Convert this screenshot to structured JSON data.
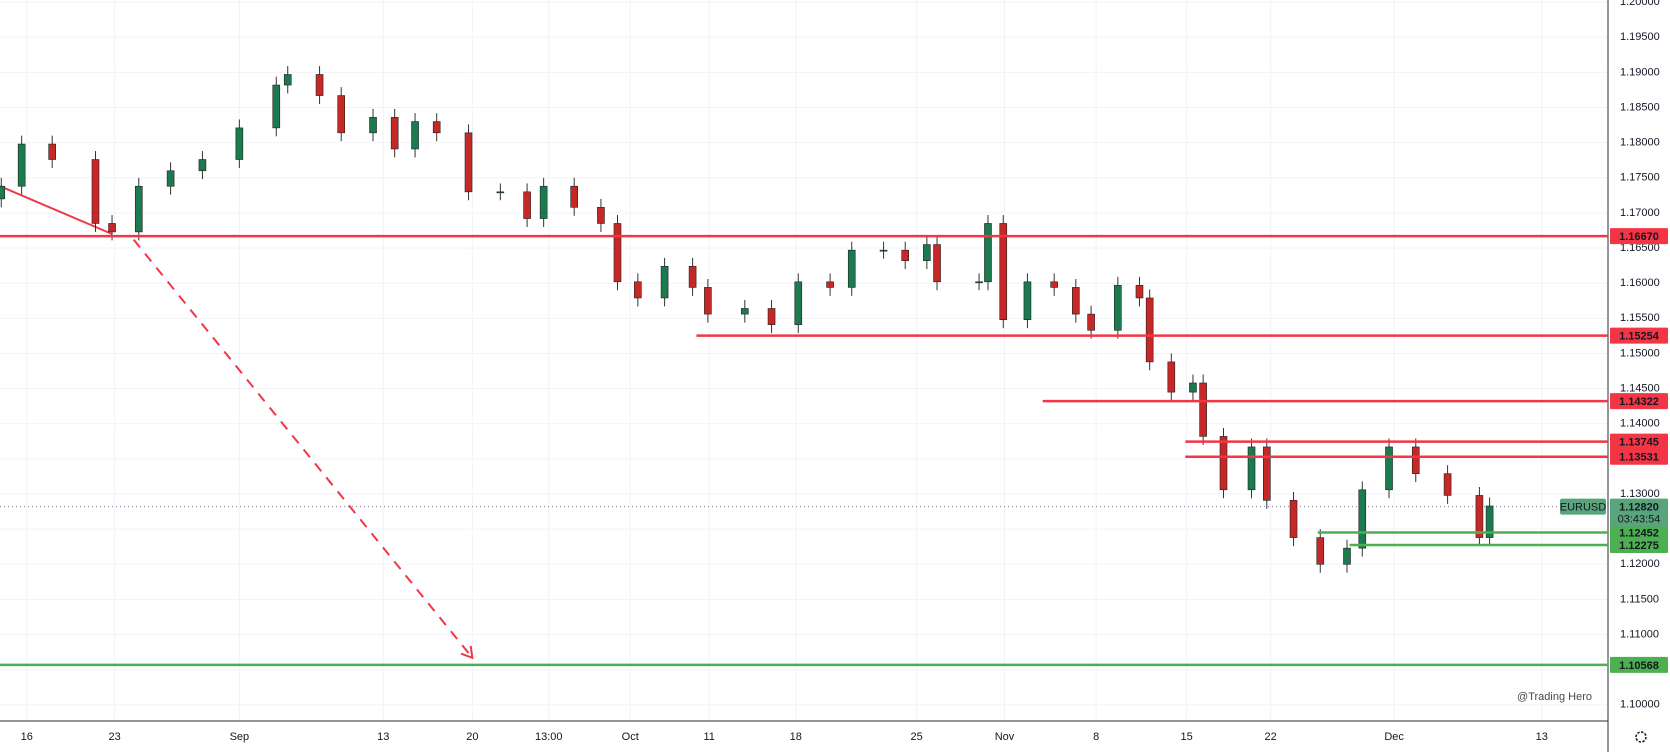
{
  "chart_data": {
    "type": "candlestick",
    "symbol": "EURUSD",
    "watermark": "@Trading Hero",
    "up_color": "#1b7a4e",
    "down_color": "#c62828",
    "xlim": [
      -2.1,
      124.2
    ],
    "ylim": [
      1.0977,
      1.2003
    ],
    "grid": true,
    "xticks": [
      {
        "value": 0,
        "label": "16"
      },
      {
        "value": 6.9,
        "label": "23"
      },
      {
        "value": 16.7,
        "label": "Sep"
      },
      {
        "value": 28.0,
        "label": "13"
      },
      {
        "value": 35.0,
        "label": "20"
      },
      {
        "value": 41.0,
        "label": "13:00"
      },
      {
        "value": 47.4,
        "label": "Oct"
      },
      {
        "value": 53.6,
        "label": "11"
      },
      {
        "value": 60.4,
        "label": "18"
      },
      {
        "value": 69.9,
        "label": "25"
      },
      {
        "value": 76.8,
        "label": "Nov"
      },
      {
        "value": 84.0,
        "label": "8"
      },
      {
        "value": 91.1,
        "label": "15"
      },
      {
        "value": 97.7,
        "label": "22"
      },
      {
        "value": 107.4,
        "label": "Dec"
      },
      {
        "value": 119.0,
        "label": "13"
      }
    ],
    "yticks": [
      {
        "value": 1.1,
        "label": "1.10000"
      },
      {
        "value": 1.105,
        "label": "1.10500"
      },
      {
        "value": 1.11,
        "label": "1.11000"
      },
      {
        "value": 1.115,
        "label": "1.11500"
      },
      {
        "value": 1.12,
        "label": "1.12000"
      },
      {
        "value": 1.125,
        "label": "1.12500"
      },
      {
        "value": 1.13,
        "label": "1.13000"
      },
      {
        "value": 1.135,
        "label": "1.13500"
      },
      {
        "value": 1.14,
        "label": "1.14000"
      },
      {
        "value": 1.145,
        "label": "1.14500"
      },
      {
        "value": 1.15,
        "label": "1.15000"
      },
      {
        "value": 1.155,
        "label": "1.15500"
      },
      {
        "value": 1.16,
        "label": "1.16000"
      },
      {
        "value": 1.165,
        "label": "1.16500"
      },
      {
        "value": 1.17,
        "label": "1.17000"
      },
      {
        "value": 1.175,
        "label": "1.17500"
      },
      {
        "value": 1.18,
        "label": "1.18000"
      },
      {
        "value": 1.185,
        "label": "1.18500"
      },
      {
        "value": 1.19,
        "label": "1.19000"
      },
      {
        "value": 1.195,
        "label": "1.19500"
      },
      {
        "value": 1.2,
        "label": "1.20000"
      }
    ],
    "x": [
      -2,
      -0.4,
      2,
      5.4,
      6.7,
      8.8,
      11.3,
      13.8,
      16.7,
      19.6,
      20.5,
      23,
      24.7,
      27.2,
      28.9,
      30.5,
      32.2,
      34.7,
      37.2,
      39.3,
      40.6,
      43,
      45.1,
      46.4,
      48,
      50.1,
      52.3,
      53.5,
      56.4,
      58.5,
      60.6,
      63.1,
      64.8,
      67.3,
      69,
      70.7,
      71.5,
      74.8,
      75.5,
      76.7,
      78.6,
      80.7,
      82.4,
      83.6,
      85.7,
      87.4,
      88.2,
      89.9,
      91.6,
      92.4,
      94,
      96.2,
      97.4,
      99.5,
      101.6,
      103.7,
      104.9,
      107,
      109.1,
      111.6,
      114.1,
      114.9
    ],
    "open": [
      1.172,
      1.1738,
      1.1798,
      1.1776,
      1.1685,
      1.1673,
      1.1738,
      1.176,
      1.1776,
      1.1821,
      1.1882,
      1.1897,
      1.1867,
      1.1814,
      1.1836,
      1.1791,
      1.183,
      1.1814,
      1.173,
      1.173,
      1.1692,
      1.1738,
      1.1708,
      1.1685,
      1.1602,
      1.1579,
      1.1624,
      1.1594,
      1.1556,
      1.1564,
      1.1541,
      1.1602,
      1.1594,
      1.1647,
      1.1647,
      1.1632,
      1.1655,
      1.1602,
      1.1602,
      1.1685,
      1.1548,
      1.1602,
      1.1594,
      1.1556,
      1.1533,
      1.1597,
      1.1579,
      1.1488,
      1.1445,
      1.1458,
      1.1382,
      1.1306,
      1.1367,
      1.1291,
      1.1238,
      1.12,
      1.1223,
      1.1306,
      1.1367,
      1.1329,
      1.1298,
      1.1238
    ],
    "high": [
      1.175,
      1.181,
      1.181,
      1.1788,
      1.1697,
      1.175,
      1.1772,
      1.1788,
      1.1833,
      1.1894,
      1.1909,
      1.1909,
      1.1879,
      1.1848,
      1.1848,
      1.1842,
      1.1842,
      1.1826,
      1.1742,
      1.1742,
      1.175,
      1.175,
      1.172,
      1.1697,
      1.1614,
      1.1636,
      1.1636,
      1.1606,
      1.1576,
      1.1576,
      1.1614,
      1.1614,
      1.1659,
      1.1659,
      1.1659,
      1.1667,
      1.1667,
      1.1614,
      1.1697,
      1.1697,
      1.1614,
      1.1614,
      1.1606,
      1.1568,
      1.1609,
      1.1609,
      1.1591,
      1.15,
      1.147,
      1.147,
      1.1394,
      1.1379,
      1.1379,
      1.1303,
      1.125,
      1.1235,
      1.1318,
      1.1379,
      1.1379,
      1.1341,
      1.131,
      1.1295
    ],
    "low": [
      1.1708,
      1.1726,
      1.1764,
      1.1673,
      1.1661,
      1.1661,
      1.1726,
      1.1748,
      1.1764,
      1.1809,
      1.187,
      1.1855,
      1.1802,
      1.1802,
      1.1779,
      1.1779,
      1.1802,
      1.1718,
      1.1718,
      1.168,
      1.168,
      1.1696,
      1.1673,
      1.159,
      1.1567,
      1.1567,
      1.1582,
      1.1544,
      1.1544,
      1.1529,
      1.1529,
      1.1582,
      1.1582,
      1.1635,
      1.162,
      1.162,
      1.159,
      1.159,
      1.159,
      1.1536,
      1.1536,
      1.1582,
      1.1544,
      1.1521,
      1.1521,
      1.1567,
      1.1476,
      1.1433,
      1.1433,
      1.137,
      1.1294,
      1.1294,
      1.1279,
      1.1226,
      1.1188,
      1.1188,
      1.1211,
      1.1294,
      1.1317,
      1.1286,
      1.1226,
      1.1226
    ],
    "close": [
      1.1738,
      1.1798,
      1.1776,
      1.1685,
      1.1673,
      1.1738,
      1.176,
      1.1776,
      1.1821,
      1.1882,
      1.1897,
      1.1867,
      1.1814,
      1.1836,
      1.1791,
      1.183,
      1.1814,
      1.173,
      1.173,
      1.1692,
      1.1738,
      1.1708,
      1.1685,
      1.1602,
      1.1579,
      1.1624,
      1.1594,
      1.1556,
      1.1564,
      1.1541,
      1.1602,
      1.1594,
      1.1647,
      1.1647,
      1.1632,
      1.1655,
      1.1602,
      1.1602,
      1.1685,
      1.1548,
      1.1602,
      1.1594,
      1.1556,
      1.1533,
      1.1597,
      1.1579,
      1.1488,
      1.1445,
      1.1458,
      1.1382,
      1.1306,
      1.1367,
      1.1291,
      1.1238,
      1.12,
      1.1223,
      1.1306,
      1.1367,
      1.1329,
      1.1298,
      1.1238,
      1.1283
    ],
    "last": {
      "value": 1.1282,
      "label": "1.12820",
      "countdown": "03:43:54",
      "color": "#5aa47b"
    },
    "levels": [
      {
        "value": 1.1667,
        "label": "1.16670",
        "color": "#f23645"
      },
      {
        "value": 1.15254,
        "label": "1.15254",
        "color": "#f23645",
        "from": 52.6
      },
      {
        "value": 1.14322,
        "label": "1.14322",
        "color": "#f23645",
        "from": 79.8
      },
      {
        "value": 1.13745,
        "label": "1.13745",
        "color": "#f23645",
        "from": 91.0
      },
      {
        "value": 1.13531,
        "label": "1.13531",
        "color": "#f23645",
        "from": 91.0
      },
      {
        "value": 1.12452,
        "label": "1.12452",
        "color": "#4caf50",
        "from": 101.4
      },
      {
        "value": 1.12275,
        "label": "1.12275",
        "color": "#4caf50",
        "from": 103.9
      },
      {
        "value": 1.10568,
        "label": "1.10568",
        "color": "#4caf50"
      }
    ],
    "drawings": [
      {
        "x1": -2.1,
        "y1": 1.1738,
        "x2": 6.7,
        "y2": 1.167,
        "color": "#f23645",
        "dashed": false
      },
      {
        "x1": 8.4,
        "y1": 1.1662,
        "x2": 35.0,
        "y2": 1.1067,
        "color": "#f23645",
        "dashed": true
      }
    ]
  }
}
